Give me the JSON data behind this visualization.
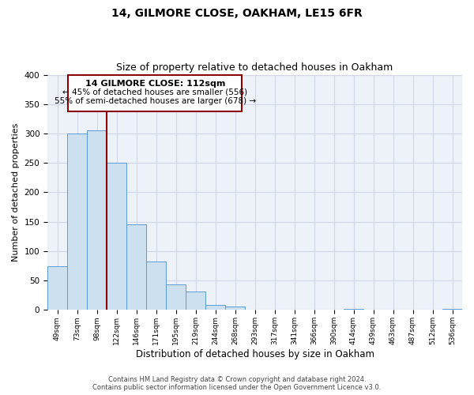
{
  "title": "14, GILMORE CLOSE, OAKHAM, LE15 6FR",
  "subtitle": "Size of property relative to detached houses in Oakham",
  "xlabel": "Distribution of detached houses by size in Oakham",
  "ylabel": "Number of detached properties",
  "bin_labels": [
    "49sqm",
    "73sqm",
    "98sqm",
    "122sqm",
    "146sqm",
    "171sqm",
    "195sqm",
    "219sqm",
    "244sqm",
    "268sqm",
    "293sqm",
    "317sqm",
    "341sqm",
    "366sqm",
    "390sqm",
    "414sqm",
    "439sqm",
    "463sqm",
    "487sqm",
    "512sqm",
    "536sqm"
  ],
  "bar_heights": [
    75,
    300,
    305,
    250,
    145,
    83,
    44,
    32,
    8,
    6,
    0,
    0,
    0,
    0,
    0,
    2,
    0,
    0,
    0,
    0,
    2
  ],
  "bar_color": "#cce0f0",
  "bar_edge_color": "#5b9bd5",
  "grid_color": "#d0d8e8",
  "background_color": "#edf2f9",
  "property_line_x": 3,
  "annotation_title": "14 GILMORE CLOSE: 112sqm",
  "annotation_line1": "← 45% of detached houses are smaller (556)",
  "annotation_line2": "55% of semi-detached houses are larger (678) →",
  "footer_line1": "Contains HM Land Registry data © Crown copyright and database right 2024.",
  "footer_line2": "Contains public sector information licensed under the Open Government Licence v3.0.",
  "ylim": [
    0,
    400
  ],
  "yticks": [
    0,
    50,
    100,
    150,
    200,
    250,
    300,
    350,
    400
  ]
}
